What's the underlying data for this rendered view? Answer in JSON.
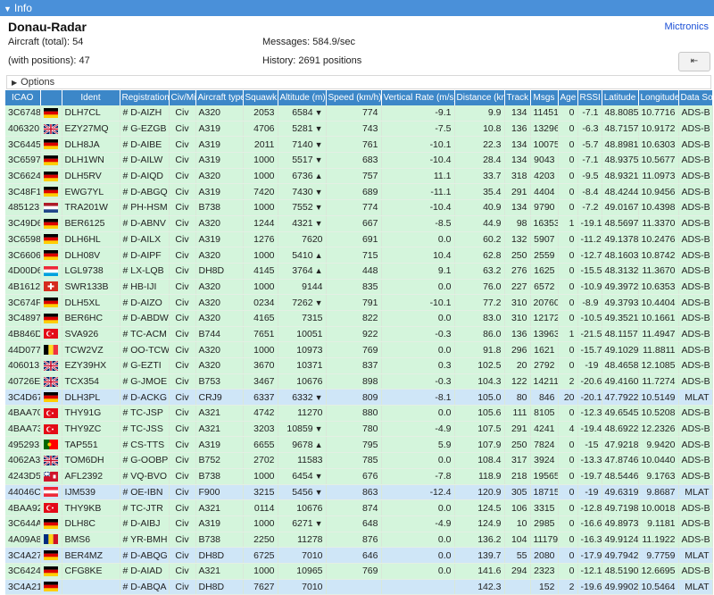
{
  "header": {
    "tab_label": "Info"
  },
  "site": {
    "name": "Donau-Radar",
    "link": "Mictronics"
  },
  "stats": {
    "aircraft_total": "Aircraft (total): 54",
    "with_positions": "(with positions): 47",
    "messages": "Messages: 584.9/sec",
    "history": "History: 2691 positions"
  },
  "options_label": "Options",
  "columns": [
    "ICAO",
    "",
    "Ident",
    "Registration",
    "Civ/Mil",
    "Aircraft type",
    "Squawk",
    "Altitude (m)",
    "Speed (km/h)",
    "Vertical Rate (m/s)",
    "Distance (km)",
    "Track",
    "Msgs",
    "Age",
    "RSSI",
    "Latitude",
    "Longitude",
    "Data Source"
  ],
  "rows": [
    {
      "icao": "3C6748",
      "flag": "de",
      "ident": "DLH7CL",
      "reg": "# D-AIZH",
      "civmil": "Civ",
      "type": "A320",
      "squawk": "2053",
      "alt": "6584",
      "trend": "down",
      "speed": "774",
      "vrate": "-9.1",
      "dist": "9.9",
      "track": "134",
      "msgs": "11451",
      "age": "0",
      "rssi": "-7.1",
      "lat": "48.8085",
      "lon": "10.7716",
      "src": "ADS-B"
    },
    {
      "icao": "406320",
      "flag": "gb",
      "ident": "EZY27MQ",
      "reg": "# G-EZGB",
      "civmil": "Civ",
      "type": "A319",
      "squawk": "4706",
      "alt": "5281",
      "trend": "down",
      "speed": "743",
      "vrate": "-7.5",
      "dist": "10.8",
      "track": "136",
      "msgs": "13296",
      "age": "0",
      "rssi": "-6.3",
      "lat": "48.7157",
      "lon": "10.9172",
      "src": "ADS-B"
    },
    {
      "icao": "3C6445",
      "flag": "de",
      "ident": "DLH8JA",
      "reg": "# D-AIBE",
      "civmil": "Civ",
      "type": "A319",
      "squawk": "2011",
      "alt": "7140",
      "trend": "down",
      "speed": "761",
      "vrate": "-10.1",
      "dist": "22.3",
      "track": "134",
      "msgs": "10075",
      "age": "0",
      "rssi": "-5.7",
      "lat": "48.8981",
      "lon": "10.6303",
      "src": "ADS-B"
    },
    {
      "icao": "3C6597",
      "flag": "de",
      "ident": "DLH1WN",
      "reg": "# D-AILW",
      "civmil": "Civ",
      "type": "A319",
      "squawk": "1000",
      "alt": "5517",
      "trend": "down",
      "speed": "683",
      "vrate": "-10.4",
      "dist": "28.4",
      "track": "134",
      "msgs": "9043",
      "age": "0",
      "rssi": "-7.1",
      "lat": "48.9375",
      "lon": "10.5677",
      "src": "ADS-B"
    },
    {
      "icao": "3C6624",
      "flag": "de",
      "ident": "DLH5RV",
      "reg": "# D-AIQD",
      "civmil": "Civ",
      "type": "A320",
      "squawk": "1000",
      "alt": "6736",
      "trend": "up",
      "speed": "757",
      "vrate": "11.1",
      "dist": "33.7",
      "track": "318",
      "msgs": "4203",
      "age": "0",
      "rssi": "-9.5",
      "lat": "48.9321",
      "lon": "11.0973",
      "src": "ADS-B"
    },
    {
      "icao": "3C48F1",
      "flag": "de",
      "ident": "EWG7YL",
      "reg": "# D-ABGQ",
      "civmil": "Civ",
      "type": "A319",
      "squawk": "7420",
      "alt": "7430",
      "trend": "down",
      "speed": "689",
      "vrate": "-11.1",
      "dist": "35.4",
      "track": "291",
      "msgs": "4404",
      "age": "0",
      "rssi": "-8.4",
      "lat": "48.4244",
      "lon": "10.9456",
      "src": "ADS-B"
    },
    {
      "icao": "485123",
      "flag": "nl",
      "ident": "TRA201W",
      "reg": "# PH-HSM",
      "civmil": "Civ",
      "type": "B738",
      "squawk": "1000",
      "alt": "7552",
      "trend": "down",
      "speed": "774",
      "vrate": "-10.4",
      "dist": "40.9",
      "track": "134",
      "msgs": "9790",
      "age": "0",
      "rssi": "-7.2",
      "lat": "49.0167",
      "lon": "10.4398",
      "src": "ADS-B"
    },
    {
      "icao": "3C49D6",
      "flag": "de",
      "ident": "BER6125",
      "reg": "# D-ABNV",
      "civmil": "Civ",
      "type": "A320",
      "squawk": "1244",
      "alt": "4321",
      "trend": "down",
      "speed": "667",
      "vrate": "-8.5",
      "dist": "44.9",
      "track": "98",
      "msgs": "16353",
      "age": "1",
      "rssi": "-19.1",
      "lat": "48.5697",
      "lon": "11.3370",
      "src": "ADS-B"
    },
    {
      "icao": "3C6598",
      "flag": "de",
      "ident": "DLH6HL",
      "reg": "# D-AILX",
      "civmil": "Civ",
      "type": "A319",
      "squawk": "1276",
      "alt": "7620",
      "trend": "",
      "speed": "691",
      "vrate": "0.0",
      "dist": "60.2",
      "track": "132",
      "msgs": "5907",
      "age": "0",
      "rssi": "-11.2",
      "lat": "49.1378",
      "lon": "10.2476",
      "src": "ADS-B"
    },
    {
      "icao": "3C6606",
      "flag": "de",
      "ident": "DLH08V",
      "reg": "# D-AIPF",
      "civmil": "Civ",
      "type": "A320",
      "squawk": "1000",
      "alt": "5410",
      "trend": "up",
      "speed": "715",
      "vrate": "10.4",
      "dist": "62.8",
      "track": "250",
      "msgs": "2559",
      "age": "0",
      "rssi": "-12.7",
      "lat": "48.1603",
      "lon": "10.8742",
      "src": "ADS-B"
    },
    {
      "icao": "4D00D6",
      "flag": "lu",
      "ident": "LGL9738",
      "reg": "# LX-LQB",
      "civmil": "Civ",
      "type": "DH8D",
      "squawk": "4145",
      "alt": "3764",
      "trend": "up",
      "speed": "448",
      "vrate": "9.1",
      "dist": "63.2",
      "track": "276",
      "msgs": "1625",
      "age": "0",
      "rssi": "-15.5",
      "lat": "48.3132",
      "lon": "11.3670",
      "src": "ADS-B"
    },
    {
      "icao": "4B1612",
      "flag": "ch",
      "ident": "SWR133B",
      "reg": "# HB-IJI",
      "civmil": "Civ",
      "type": "A320",
      "squawk": "1000",
      "alt": "9144",
      "trend": "",
      "speed": "835",
      "vrate": "0.0",
      "dist": "76.0",
      "track": "227",
      "msgs": "6572",
      "age": "0",
      "rssi": "-10.9",
      "lat": "49.3972",
      "lon": "10.6353",
      "src": "ADS-B"
    },
    {
      "icao": "3C674F",
      "flag": "de",
      "ident": "DLH5XL",
      "reg": "# D-AIZO",
      "civmil": "Civ",
      "type": "A320",
      "squawk": "0234",
      "alt": "7262",
      "trend": "down",
      "speed": "791",
      "vrate": "-10.1",
      "dist": "77.2",
      "track": "310",
      "msgs": "20760",
      "age": "0",
      "rssi": "-8.9",
      "lat": "49.3793",
      "lon": "10.4404",
      "src": "ADS-B"
    },
    {
      "icao": "3C4897",
      "flag": "de",
      "ident": "BER6HC",
      "reg": "# D-ABDW",
      "civmil": "Civ",
      "type": "A320",
      "squawk": "4165",
      "alt": "7315",
      "trend": "",
      "speed": "822",
      "vrate": "0.0",
      "dist": "83.0",
      "track": "310",
      "msgs": "12172",
      "age": "0",
      "rssi": "-10.5",
      "lat": "49.3521",
      "lon": "10.1661",
      "src": "ADS-B"
    },
    {
      "icao": "4B846D",
      "flag": "tr",
      "ident": "SVA926",
      "reg": "# TC-ACM",
      "civmil": "Civ",
      "type": "B744",
      "squawk": "7651",
      "alt": "10051",
      "trend": "",
      "speed": "922",
      "vrate": "-0.3",
      "dist": "86.0",
      "track": "136",
      "msgs": "13963",
      "age": "1",
      "rssi": "-21.5",
      "lat": "48.1157",
      "lon": "11.4947",
      "src": "ADS-B"
    },
    {
      "icao": "44D077",
      "flag": "be",
      "ident": "TCW2VZ",
      "reg": "# OO-TCW",
      "civmil": "Civ",
      "type": "A320",
      "squawk": "1000",
      "alt": "10973",
      "trend": "",
      "speed": "769",
      "vrate": "0.0",
      "dist": "91.8",
      "track": "296",
      "msgs": "1621",
      "age": "0",
      "rssi": "-15.7",
      "lat": "49.1029",
      "lon": "11.8811",
      "src": "ADS-B"
    },
    {
      "icao": "406013",
      "flag": "gb",
      "ident": "EZY39HX",
      "reg": "# G-EZTI",
      "civmil": "Civ",
      "type": "A320",
      "squawk": "3670",
      "alt": "10371",
      "trend": "",
      "speed": "837",
      "vrate": "0.3",
      "dist": "102.5",
      "track": "20",
      "msgs": "2792",
      "age": "0",
      "rssi": "-19",
      "lat": "48.4658",
      "lon": "12.1085",
      "src": "ADS-B"
    },
    {
      "icao": "40726E",
      "flag": "gb",
      "ident": "TCX354",
      "reg": "# G-JMOE",
      "civmil": "Civ",
      "type": "B753",
      "squawk": "3467",
      "alt": "10676",
      "trend": "",
      "speed": "898",
      "vrate": "-0.3",
      "dist": "104.3",
      "track": "122",
      "msgs": "14211",
      "age": "2",
      "rssi": "-20.6",
      "lat": "49.4160",
      "lon": "11.7274",
      "src": "ADS-B"
    },
    {
      "icao": "3C4D67",
      "flag": "de",
      "ident": "DLH3PL",
      "reg": "# D-ACKG",
      "civmil": "Civ",
      "type": "CRJ9",
      "squawk": "6337",
      "alt": "6332",
      "trend": "down",
      "speed": "809",
      "vrate": "-8.1",
      "dist": "105.0",
      "track": "80",
      "msgs": "846",
      "age": "20",
      "rssi": "-20.1",
      "lat": "47.7922",
      "lon": "10.5149",
      "src": "MLAT"
    },
    {
      "icao": "4BAA70",
      "flag": "tr",
      "ident": "THY91G",
      "reg": "# TC-JSP",
      "civmil": "Civ",
      "type": "A321",
      "squawk": "4742",
      "alt": "11270",
      "trend": "",
      "speed": "880",
      "vrate": "0.0",
      "dist": "105.6",
      "track": "111",
      "msgs": "8105",
      "age": "0",
      "rssi": "-12.3",
      "lat": "49.6545",
      "lon": "10.5208",
      "src": "ADS-B"
    },
    {
      "icao": "4BAA73",
      "flag": "tr",
      "ident": "THY9ZC",
      "reg": "# TC-JSS",
      "civmil": "Civ",
      "type": "A321",
      "squawk": "3203",
      "alt": "10859",
      "trend": "down",
      "speed": "780",
      "vrate": "-4.9",
      "dist": "107.5",
      "track": "291",
      "msgs": "4241",
      "age": "4",
      "rssi": "-19.4",
      "lat": "48.6922",
      "lon": "12.2326",
      "src": "ADS-B"
    },
    {
      "icao": "495293",
      "flag": "pt",
      "ident": "TAP551",
      "reg": "# CS-TTS",
      "civmil": "Civ",
      "type": "A319",
      "squawk": "6655",
      "alt": "9678",
      "trend": "up",
      "speed": "795",
      "vrate": "5.9",
      "dist": "107.9",
      "track": "250",
      "msgs": "7824",
      "age": "0",
      "rssi": "-15",
      "lat": "47.9218",
      "lon": "9.9420",
      "src": "ADS-B"
    },
    {
      "icao": "4062A3",
      "flag": "gb",
      "ident": "TOM6DH",
      "reg": "# G-OOBP",
      "civmil": "Civ",
      "type": "B752",
      "squawk": "2702",
      "alt": "11583",
      "trend": "",
      "speed": "785",
      "vrate": "0.0",
      "dist": "108.4",
      "track": "317",
      "msgs": "3924",
      "age": "0",
      "rssi": "-13.3",
      "lat": "47.8746",
      "lon": "10.0440",
      "src": "ADS-B"
    },
    {
      "icao": "4243D5",
      "flag": "bm",
      "ident": "AFL2392",
      "reg": "# VQ-BVO",
      "civmil": "Civ",
      "type": "B738",
      "squawk": "1000",
      "alt": "6454",
      "trend": "down",
      "speed": "676",
      "vrate": "-7.8",
      "dist": "118.9",
      "track": "218",
      "msgs": "19565",
      "age": "0",
      "rssi": "-19.7",
      "lat": "48.5446",
      "lon": "9.1763",
      "src": "ADS-B"
    },
    {
      "icao": "44046C",
      "flag": "at",
      "ident": "IJM539",
      "reg": "# OE-IBN",
      "civmil": "Civ",
      "type": "F900",
      "squawk": "3215",
      "alt": "5456",
      "trend": "down",
      "speed": "863",
      "vrate": "-12.4",
      "dist": "120.9",
      "track": "305",
      "msgs": "18715",
      "age": "0",
      "rssi": "-19",
      "lat": "49.6319",
      "lon": "9.8687",
      "src": "MLAT"
    },
    {
      "icao": "4BAA92",
      "flag": "tr",
      "ident": "THY9KB",
      "reg": "# TC-JTR",
      "civmil": "Civ",
      "type": "A321",
      "squawk": "0114",
      "alt": "10676",
      "trend": "",
      "speed": "874",
      "vrate": "0.0",
      "dist": "124.5",
      "track": "106",
      "msgs": "3315",
      "age": "0",
      "rssi": "-12.8",
      "lat": "49.7198",
      "lon": "10.0018",
      "src": "ADS-B"
    },
    {
      "icao": "3C644A",
      "flag": "de",
      "ident": "DLH8C",
      "reg": "# D-AIBJ",
      "civmil": "Civ",
      "type": "A319",
      "squawk": "1000",
      "alt": "6271",
      "trend": "down",
      "speed": "648",
      "vrate": "-4.9",
      "dist": "124.9",
      "track": "10",
      "msgs": "2985",
      "age": "0",
      "rssi": "-16.6",
      "lat": "49.8973",
      "lon": "9.1181",
      "src": "ADS-B"
    },
    {
      "icao": "4A09A8",
      "flag": "ro",
      "ident": "BMS6",
      "reg": "# YR-BMH",
      "civmil": "Civ",
      "type": "B738",
      "squawk": "2250",
      "alt": "11278",
      "trend": "",
      "speed": "876",
      "vrate": "0.0",
      "dist": "136.2",
      "track": "104",
      "msgs": "11179",
      "age": "0",
      "rssi": "-16.3",
      "lat": "49.9124",
      "lon": "11.1922",
      "src": "ADS-B"
    },
    {
      "icao": "3C4A27",
      "flag": "de",
      "ident": "BER4MZ",
      "reg": "# D-ABQG",
      "civmil": "Civ",
      "type": "DH8D",
      "squawk": "6725",
      "alt": "7010",
      "trend": "",
      "speed": "646",
      "vrate": "0.0",
      "dist": "139.7",
      "track": "55",
      "msgs": "2080",
      "age": "0",
      "rssi": "-17.9",
      "lat": "49.7942",
      "lon": "9.7759",
      "src": "MLAT"
    },
    {
      "icao": "3C6424",
      "flag": "de",
      "ident": "CFG8KE",
      "reg": "# D-AIAD",
      "civmil": "Civ",
      "type": "A321",
      "squawk": "1000",
      "alt": "10965",
      "trend": "",
      "speed": "769",
      "vrate": "0.0",
      "dist": "141.6",
      "track": "294",
      "msgs": "2323",
      "age": "0",
      "rssi": "-12.1",
      "lat": "48.5190",
      "lon": "12.6695",
      "src": "ADS-B"
    },
    {
      "icao": "3C4A21",
      "flag": "de",
      "ident": "",
      "reg": "# D-ABQA",
      "civmil": "Civ",
      "type": "DH8D",
      "squawk": "7627",
      "alt": "7010",
      "trend": "",
      "speed": "",
      "vrate": "",
      "dist": "142.3",
      "track": "",
      "msgs": "152",
      "age": "2",
      "rssi": "-19.6",
      "lat": "49.9902",
      "lon": "10.5464",
      "src": "MLAT"
    }
  ]
}
